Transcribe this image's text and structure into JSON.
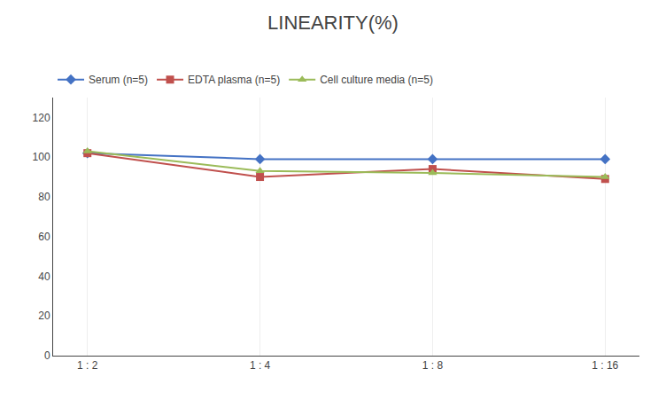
{
  "chart_data": {
    "type": "line",
    "title": "LINEARITY(%)",
    "categories": [
      "1 : 2",
      "1 : 4",
      "1 : 8",
      "1 : 16"
    ],
    "series": [
      {
        "name": "Serum (n=5)",
        "color": "#4472C4",
        "marker": "diamond",
        "values": [
          102,
          99,
          99,
          99
        ]
      },
      {
        "name": "EDTA plasma (n=5)",
        "color": "#C0504D",
        "marker": "square",
        "values": [
          102,
          90,
          94,
          89
        ]
      },
      {
        "name": "Cell culture media (n=5)",
        "color": "#9BBB59",
        "marker": "triangle-up",
        "values": [
          103,
          93,
          92,
          90
        ]
      }
    ],
    "ylim": [
      0,
      130
    ],
    "yticks": [
      0,
      20,
      40,
      60,
      80,
      100,
      120
    ],
    "grid": "x",
    "legend": "top"
  }
}
